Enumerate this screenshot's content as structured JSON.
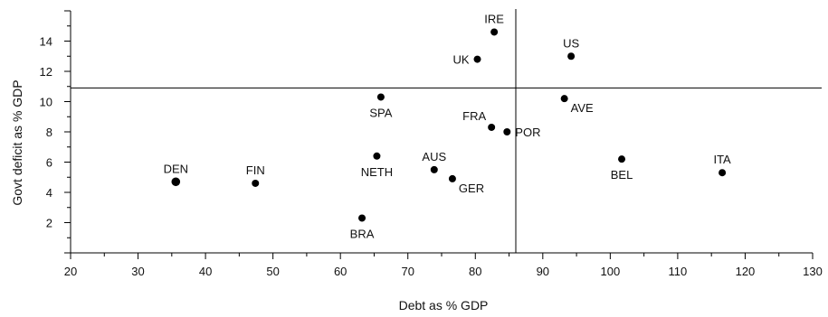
{
  "chart_data": {
    "type": "scatter",
    "title": "",
    "xlabel": "Debt as % GDP",
    "ylabel": "Govt deficit as % GDP",
    "xlim": [
      20,
      130
    ],
    "ylim": [
      0,
      16
    ],
    "xticks": [
      20,
      30,
      40,
      50,
      60,
      70,
      80,
      90,
      100,
      110,
      120,
      130
    ],
    "yticks": [
      2,
      4,
      6,
      8,
      10,
      12,
      14
    ],
    "grid": false,
    "reference_lines": {
      "x": 86,
      "y": 10.9
    },
    "points": [
      {
        "label": "IRE",
        "x": 82.8,
        "y": 14.6,
        "label_pos": "above"
      },
      {
        "label": "UK",
        "x": 80.3,
        "y": 12.8,
        "label_pos": "left"
      },
      {
        "label": "US",
        "x": 94.2,
        "y": 13.0,
        "label_pos": "above"
      },
      {
        "label": "SPA",
        "x": 66.0,
        "y": 10.3,
        "label_pos": "below"
      },
      {
        "label": "AVE",
        "x": 93.2,
        "y": 10.2,
        "label_pos": "below-right"
      },
      {
        "label": "FRA",
        "x": 82.4,
        "y": 8.3,
        "label_pos": "above-left"
      },
      {
        "label": "POR",
        "x": 84.7,
        "y": 8.0,
        "label_pos": "right"
      },
      {
        "label": "NETH",
        "x": 65.4,
        "y": 6.4,
        "label_pos": "below"
      },
      {
        "label": "AUS",
        "x": 73.9,
        "y": 5.5,
        "label_pos": "above"
      },
      {
        "label": "GER",
        "x": 76.6,
        "y": 4.9,
        "label_pos": "below-right"
      },
      {
        "label": "BEL",
        "x": 101.7,
        "y": 6.2,
        "label_pos": "below"
      },
      {
        "label": "ITA",
        "x": 116.6,
        "y": 5.3,
        "label_pos": "above"
      },
      {
        "label": "DEN",
        "x": 35.6,
        "y": 4.7,
        "label_pos": "above"
      },
      {
        "label": "FIN",
        "x": 47.4,
        "y": 4.6,
        "label_pos": "above"
      },
      {
        "label": "BRA",
        "x": 63.2,
        "y": 2.3,
        "label_pos": "below"
      }
    ]
  }
}
